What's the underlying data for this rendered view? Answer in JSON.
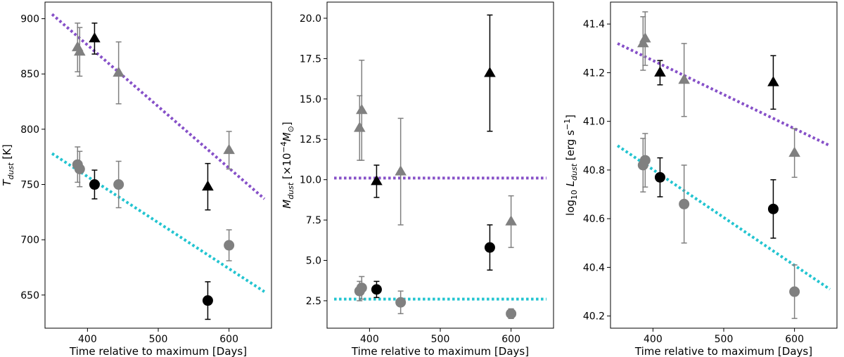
{
  "chart_data": [
    {
      "type": "scatter",
      "id": "temperature",
      "xlabel": "Time relative to maximum [Days]",
      "ylabel": {
        "base": "T",
        "sub": "dust",
        "suffix": " [K]"
      },
      "xlim": [
        340,
        660
      ],
      "ylim": [
        620,
        915
      ],
      "xticks": [
        400,
        500,
        600
      ],
      "yticks": [
        650,
        700,
        750,
        800,
        850,
        900
      ],
      "yticks_labels": [
        "650",
        "700",
        "750",
        "800",
        "850",
        "900"
      ],
      "series": [
        {
          "name": "triangles-grey",
          "marker": "triangle",
          "color": "#808080",
          "points": [
            {
              "x": 386,
              "y": 874,
              "err": 22
            },
            {
              "x": 389,
              "y": 870,
              "err": 22
            },
            {
              "x": 444,
              "y": 851,
              "err": 28
            },
            {
              "x": 600,
              "y": 781,
              "err": 17
            }
          ]
        },
        {
          "name": "triangles-black",
          "marker": "triangle",
          "color": "#000000",
          "points": [
            {
              "x": 410,
              "y": 882,
              "err": 14
            },
            {
              "x": 570,
              "y": 748,
              "err": 21
            }
          ]
        },
        {
          "name": "circles-grey",
          "marker": "circle",
          "color": "#808080",
          "points": [
            {
              "x": 386,
              "y": 768,
              "err": 16
            },
            {
              "x": 389,
              "y": 764,
              "err": 16
            },
            {
              "x": 444,
              "y": 750,
              "err": 21
            },
            {
              "x": 600,
              "y": 695,
              "err": 14
            }
          ]
        },
        {
          "name": "circles-black",
          "marker": "circle",
          "color": "#000000",
          "points": [
            {
              "x": 410,
              "y": 750,
              "err": 13
            },
            {
              "x": 570,
              "y": 645,
              "err": 17
            }
          ]
        }
      ],
      "fit_lines": [
        {
          "name": "purple-fit",
          "color": "#8650c8",
          "x": [
            350,
            650
          ],
          "y": [
            904,
            737
          ]
        },
        {
          "name": "cyan-fit",
          "color": "#22c4d0",
          "x": [
            350,
            650
          ],
          "y": [
            778,
            653
          ]
        }
      ]
    },
    {
      "type": "scatter",
      "id": "mass",
      "xlabel": "Time relative to maximum [Days]",
      "ylabel": {
        "base": "M",
        "sub": "dust",
        "suffix": " [×10",
        "sup": "−4",
        "tail": "M",
        "tailsub": "⊙",
        "close": "]"
      },
      "xlim": [
        340,
        660
      ],
      "ylim": [
        0.8,
        21.0
      ],
      "xticks": [
        400,
        500,
        600
      ],
      "yticks": [
        2.5,
        5.0,
        7.5,
        10.0,
        12.5,
        15.0,
        17.5,
        20.0
      ],
      "yticks_labels": [
        "2.5",
        "5.0",
        "7.5",
        "10.0",
        "12.5",
        "15.0",
        "17.5",
        "20.0"
      ],
      "series": [
        {
          "name": "triangles-grey",
          "marker": "triangle",
          "color": "#808080",
          "points": [
            {
              "x": 386,
              "y": 13.2,
              "err": 2.0
            },
            {
              "x": 389,
              "y": 14.3,
              "err": 3.1
            },
            {
              "x": 444,
              "y": 10.5,
              "err": 3.3
            },
            {
              "x": 600,
              "y": 7.4,
              "err": 1.6
            }
          ]
        },
        {
          "name": "triangles-black",
          "marker": "triangle",
          "color": "#000000",
          "points": [
            {
              "x": 410,
              "y": 9.9,
              "err": 1.0
            },
            {
              "x": 570,
              "y": 16.6,
              "err": 3.6
            }
          ]
        },
        {
          "name": "circles-grey",
          "marker": "circle",
          "color": "#808080",
          "points": [
            {
              "x": 386,
              "y": 3.1,
              "err": 0.6
            },
            {
              "x": 389,
              "y": 3.3,
              "err": 0.7
            },
            {
              "x": 444,
              "y": 2.4,
              "err": 0.7
            },
            {
              "x": 600,
              "y": 1.7,
              "err": 0.3
            }
          ]
        },
        {
          "name": "circles-black",
          "marker": "circle",
          "color": "#000000",
          "points": [
            {
              "x": 410,
              "y": 3.2,
              "err": 0.5
            },
            {
              "x": 570,
              "y": 5.8,
              "err": 1.4
            }
          ]
        }
      ],
      "fit_lines": [
        {
          "name": "purple-fit",
          "color": "#8650c8",
          "x": [
            350,
            650
          ],
          "y": [
            10.1,
            10.1
          ]
        },
        {
          "name": "cyan-fit",
          "color": "#22c4d0",
          "x": [
            350,
            650
          ],
          "y": [
            2.6,
            2.6
          ]
        }
      ]
    },
    {
      "type": "scatter",
      "id": "luminosity",
      "xlabel": "Time relative to maximum [Days]",
      "ylabel": {
        "base": "log",
        "basesub": "10",
        "mid": " L",
        "sub": "dust",
        "suffix": " [erg s",
        "sup": "−1",
        "close": "]"
      },
      "xlim": [
        340,
        660
      ],
      "ylim": [
        40.15,
        41.49
      ],
      "xticks": [
        400,
        500,
        600
      ],
      "yticks": [
        40.2,
        40.4,
        40.6,
        40.8,
        41.0,
        41.2,
        41.4
      ],
      "yticks_labels": [
        "40.2",
        "40.4",
        "40.6",
        "40.8",
        "41.0",
        "41.2",
        "41.4"
      ],
      "series": [
        {
          "name": "triangles-grey",
          "marker": "triangle",
          "color": "#808080",
          "points": [
            {
              "x": 386,
              "y": 41.32,
              "err": 0.11
            },
            {
              "x": 389,
              "y": 41.34,
              "err": 0.11
            },
            {
              "x": 444,
              "y": 41.17,
              "err": 0.15
            },
            {
              "x": 600,
              "y": 40.87,
              "err": 0.1
            }
          ]
        },
        {
          "name": "triangles-black",
          "marker": "triangle",
          "color": "#000000",
          "points": [
            {
              "x": 410,
              "y": 41.2,
              "err": 0.05
            },
            {
              "x": 570,
              "y": 41.16,
              "err": 0.11
            }
          ]
        },
        {
          "name": "circles-grey",
          "marker": "circle",
          "color": "#808080",
          "points": [
            {
              "x": 386,
              "y": 40.82,
              "err": 0.11
            },
            {
              "x": 389,
              "y": 40.84,
              "err": 0.11
            },
            {
              "x": 444,
              "y": 40.66,
              "err": 0.16
            },
            {
              "x": 600,
              "y": 40.3,
              "err": 0.11
            }
          ]
        },
        {
          "name": "circles-black",
          "marker": "circle",
          "color": "#000000",
          "points": [
            {
              "x": 410,
              "y": 40.77,
              "err": 0.08
            },
            {
              "x": 570,
              "y": 40.64,
              "err": 0.12
            }
          ]
        }
      ],
      "fit_lines": [
        {
          "name": "purple-fit",
          "color": "#8650c8",
          "x": [
            350,
            650
          ],
          "y": [
            41.32,
            40.9
          ]
        },
        {
          "name": "cyan-fit",
          "color": "#22c4d0",
          "x": [
            350,
            650
          ],
          "y": [
            40.9,
            40.31
          ]
        }
      ]
    }
  ]
}
